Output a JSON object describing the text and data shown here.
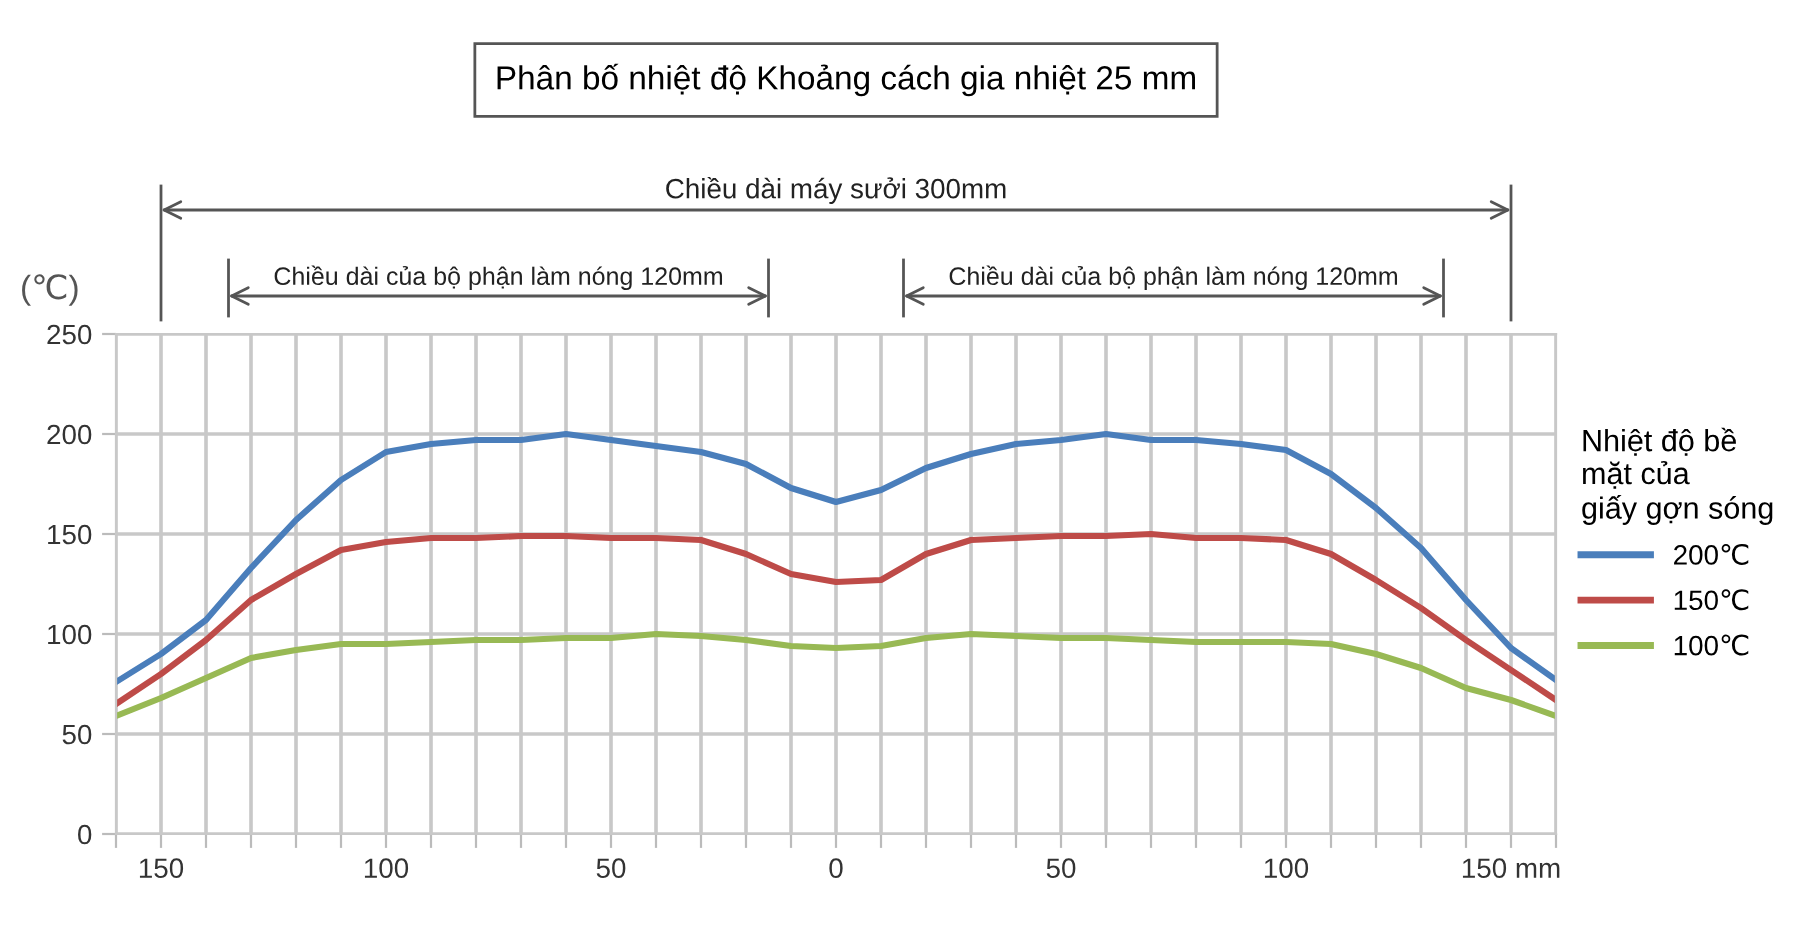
{
  "chart_data": {
    "type": "line",
    "title": "Phân bố nhiệt độ Khoảng cách gia nhiệt 25 mm",
    "ylabel": "(℃)",
    "annotations": [
      "Chiều dài máy sưởi 300mm",
      "Chiều dài của bộ phận làm nóng 120mm",
      "Chiều dài của bộ phận làm nóng 120mm"
    ],
    "x": [
      -160,
      -150,
      -140,
      -130,
      -120,
      -110,
      -100,
      -90,
      -80,
      -70,
      -60,
      -50,
      -40,
      -30,
      -20,
      -10,
      0,
      10,
      20,
      30,
      40,
      50,
      60,
      70,
      80,
      90,
      100,
      110,
      120,
      130,
      140,
      150,
      160
    ],
    "series": [
      {
        "name": "200℃",
        "color": "#4a7ebb",
        "values": [
          76,
          90,
          107,
          133,
          157,
          177,
          191,
          195,
          197,
          197,
          200,
          197,
          194,
          191,
          185,
          173,
          166,
          172,
          183,
          190,
          195,
          197,
          200,
          197,
          197,
          195,
          192,
          180,
          163,
          143,
          117,
          93,
          77
        ]
      },
      {
        "name": "150℃",
        "color": "#be4b48",
        "values": [
          65,
          80,
          97,
          117,
          130,
          142,
          146,
          148,
          148,
          149,
          149,
          148,
          148,
          147,
          140,
          130,
          126,
          127,
          140,
          147,
          148,
          149,
          149,
          150,
          148,
          148,
          147,
          140,
          127,
          113,
          97,
          82,
          67
        ]
      },
      {
        "name": "100℃",
        "color": "#98b954",
        "values": [
          59,
          68,
          78,
          88,
          92,
          95,
          95,
          96,
          97,
          97,
          98,
          98,
          100,
          99,
          97,
          94,
          93,
          94,
          98,
          100,
          99,
          98,
          98,
          97,
          96,
          96,
          96,
          95,
          90,
          83,
          73,
          67,
          59
        ]
      }
    ],
    "legend_title": "Nhiệt độ bề\nmặt của\ngiấy gợn sóng",
    "legend": "right",
    "xlim": [
      -160,
      160
    ],
    "xticks": [
      {
        "value": -160,
        "label": null
      },
      {
        "value": -150,
        "label": "150"
      },
      {
        "value": -140,
        "label": null
      },
      {
        "value": -130,
        "label": null
      },
      {
        "value": -120,
        "label": null
      },
      {
        "value": -110,
        "label": null
      },
      {
        "value": -100,
        "label": "100"
      },
      {
        "value": -90,
        "label": null
      },
      {
        "value": -80,
        "label": null
      },
      {
        "value": -70,
        "label": null
      },
      {
        "value": -60,
        "label": null
      },
      {
        "value": -50,
        "label": "50"
      },
      {
        "value": -40,
        "label": null
      },
      {
        "value": -30,
        "label": null
      },
      {
        "value": -20,
        "label": null
      },
      {
        "value": -10,
        "label": null
      },
      0,
      {
        "value": 10,
        "label": null
      },
      {
        "value": 20,
        "label": null
      },
      {
        "value": 30,
        "label": null
      },
      {
        "value": 40,
        "label": null
      },
      50,
      {
        "value": 60,
        "label": null
      },
      {
        "value": 70,
        "label": null
      },
      {
        "value": 80,
        "label": null
      },
      {
        "value": 90,
        "label": null
      },
      100,
      {
        "value": 110,
        "label": null
      },
      {
        "value": 120,
        "label": null
      },
      {
        "value": 130,
        "label": null
      },
      {
        "value": 140,
        "label": null
      },
      {
        "value": 150,
        "label": "150 mm"
      },
      {
        "value": 160,
        "label": null
      }
    ],
    "ylim": [
      0,
      250
    ],
    "yticks": [
      0,
      50,
      100,
      150,
      200,
      250
    ],
    "grid": true,
    "marker": "none",
    "line_style": "solid"
  }
}
